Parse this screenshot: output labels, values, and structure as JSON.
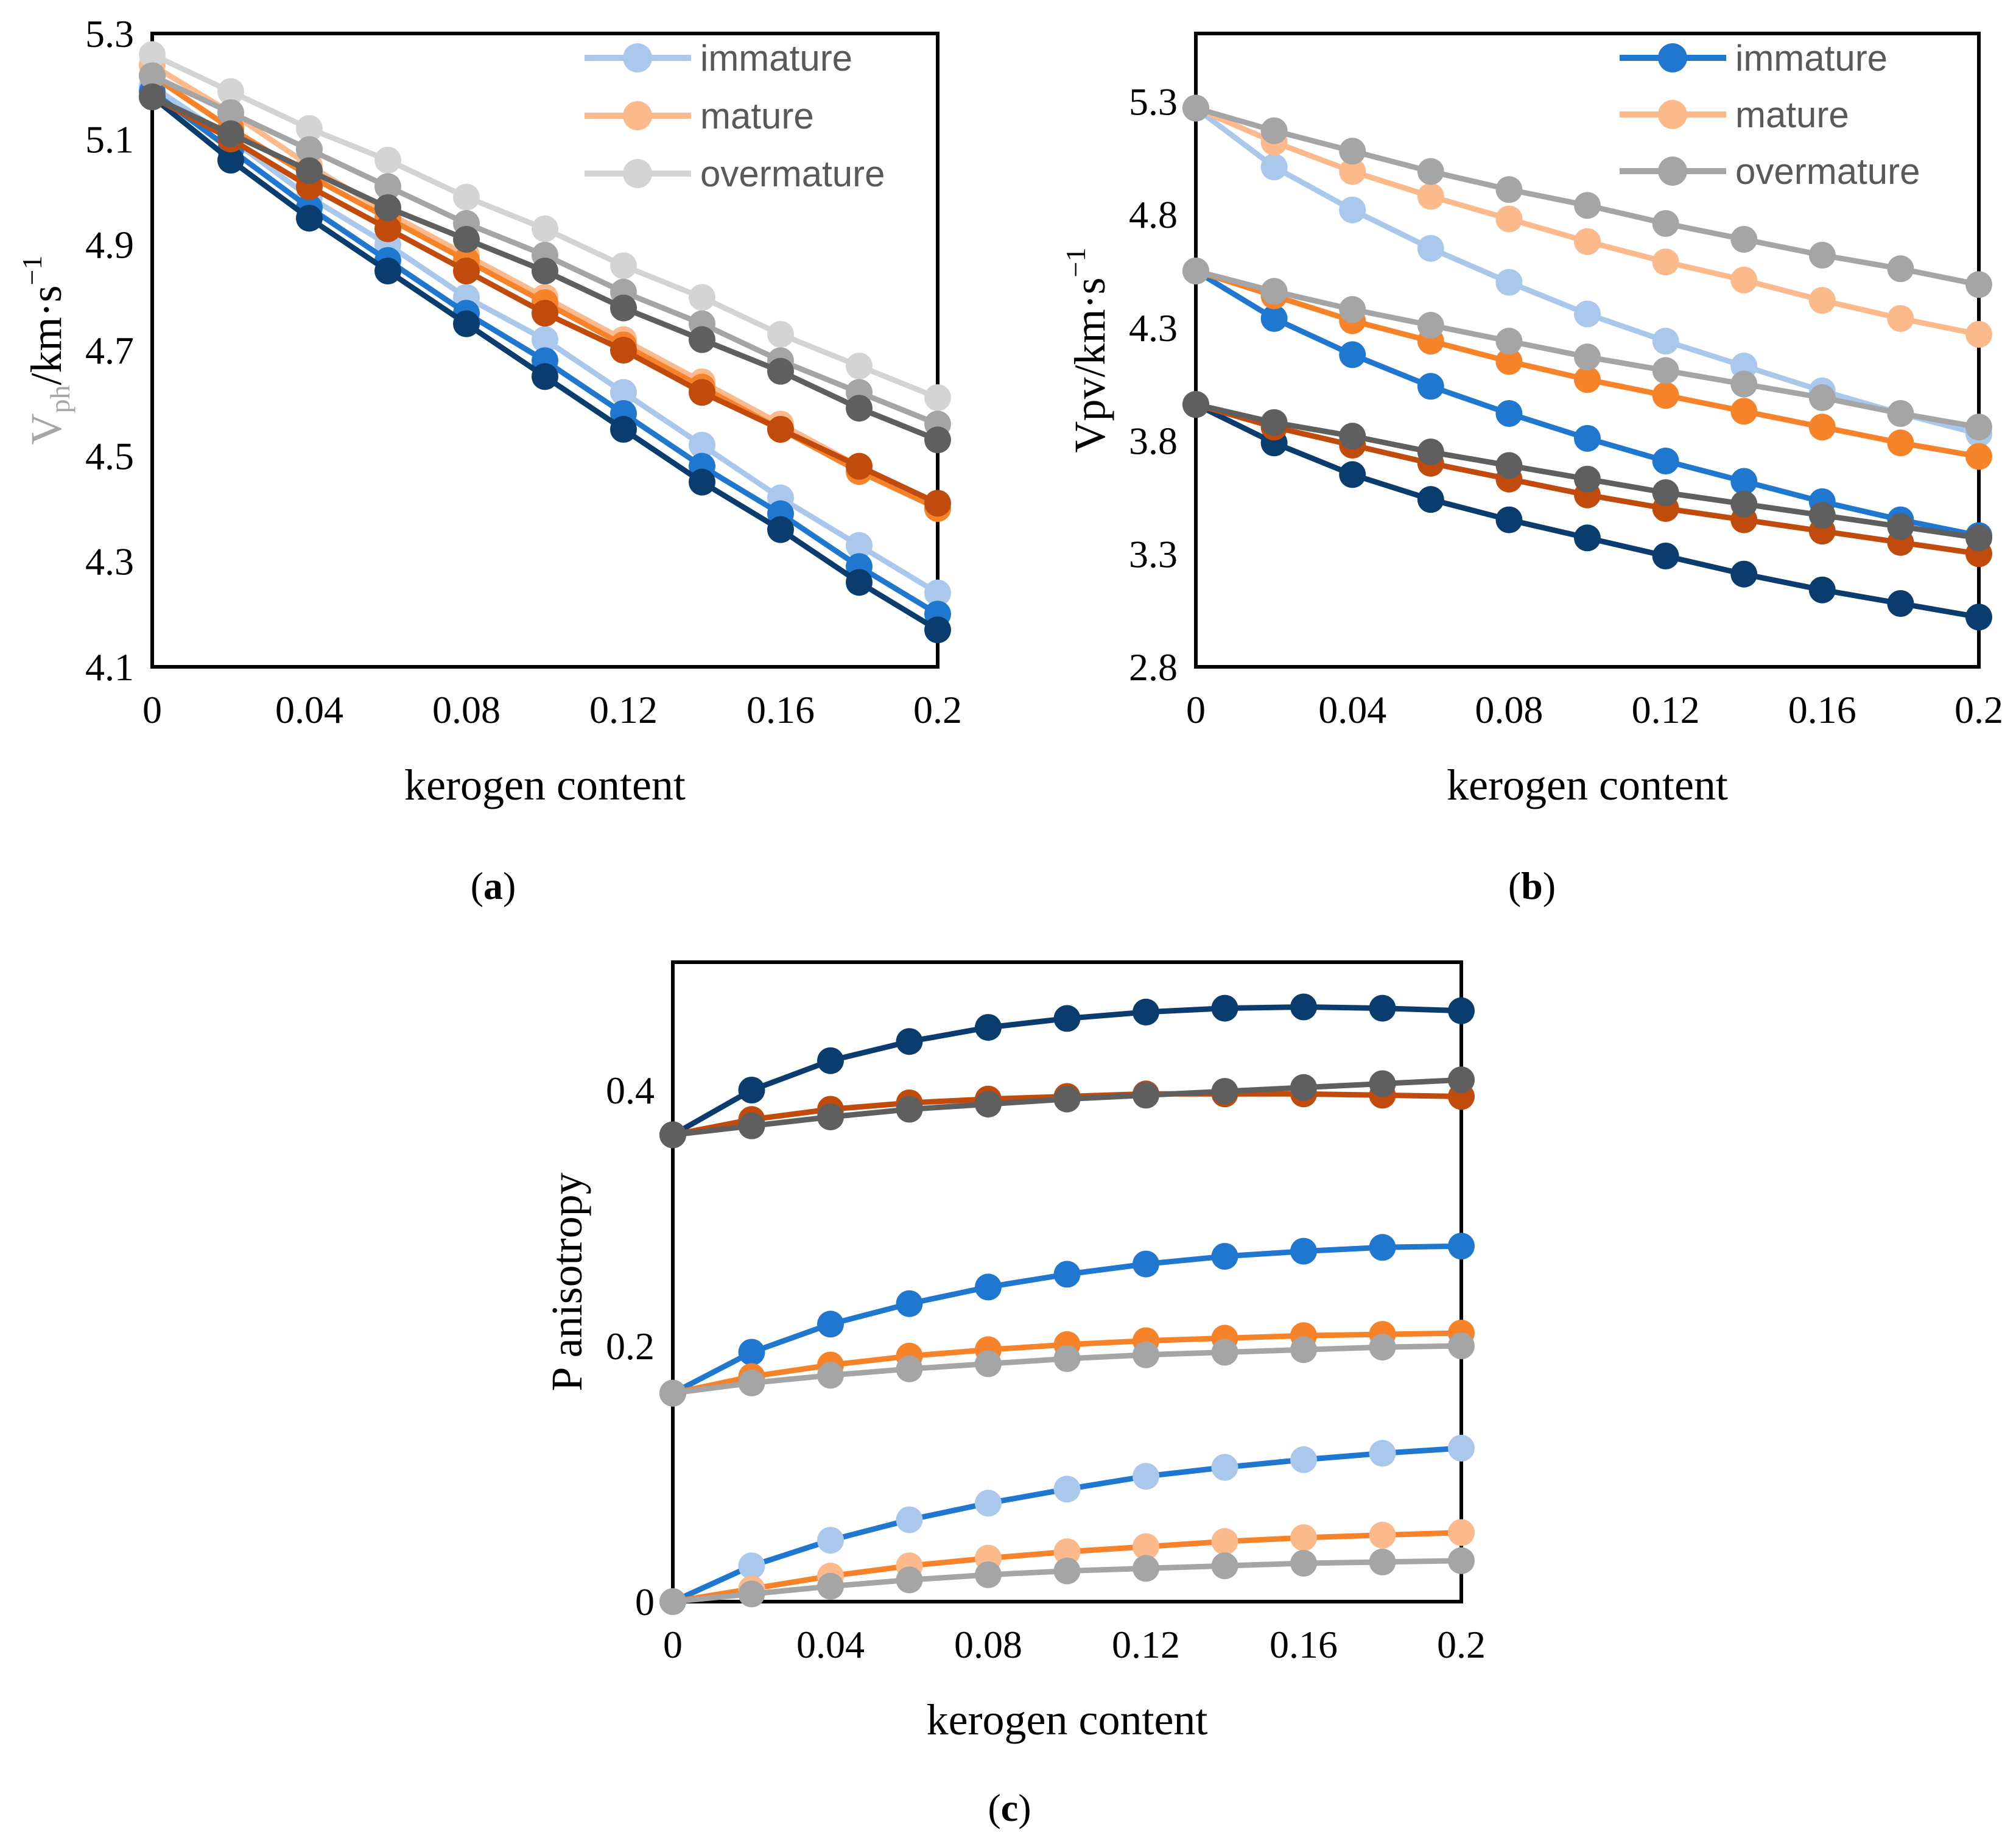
{
  "colors": {
    "immature_light": "#a9c8ec",
    "immature_mid": "#1f77cf",
    "immature_dark": "#0a3d6e",
    "mature_light": "#fbb98c",
    "mature_mid": "#f6822a",
    "mature_dark": "#c14b0c",
    "overmature_light": "#d4d4d4",
    "overmature_mid": "#a5a5a5",
    "overmature_dark": "#5f5f5f"
  },
  "chart_data": [
    {
      "id": "a",
      "type": "line",
      "panel_label": "a",
      "xlabel": "kerogen content",
      "ylabel": "V",
      "ylabel_sub": "ph",
      "ylabel_unit": "/km·s",
      "ylabel_sup": "−1",
      "xlim": [
        0,
        0.2
      ],
      "ylim": [
        4.1,
        5.3
      ],
      "xticks": [
        "0",
        "0.04",
        "0.08",
        "0.12",
        "0.16",
        "0.2"
      ],
      "yticks": [
        "4.1",
        "4.3",
        "4.5",
        "4.7",
        "4.9",
        "5.1",
        "5.3"
      ],
      "legend": [
        {
          "label": "immature",
          "color": "immature_light"
        },
        {
          "label": "mature",
          "color": "mature_light"
        },
        {
          "label": "overmature",
          "color": "overmature_light"
        }
      ],
      "x": [
        0,
        0.02,
        0.04,
        0.06,
        0.08,
        0.1,
        0.12,
        0.14,
        0.16,
        0.18,
        0.2
      ],
      "series": [
        {
          "name": "immature-1",
          "color": "immature_light",
          "values": [
            5.2,
            5.1,
            4.99,
            4.9,
            4.8,
            4.72,
            4.62,
            4.52,
            4.42,
            4.33,
            4.24
          ]
        },
        {
          "name": "immature-2",
          "color": "immature_mid",
          "values": [
            5.19,
            5.08,
            4.97,
            4.87,
            4.77,
            4.68,
            4.58,
            4.48,
            4.39,
            4.29,
            4.2
          ]
        },
        {
          "name": "immature-3",
          "color": "immature_dark",
          "values": [
            5.18,
            5.06,
            4.95,
            4.85,
            4.75,
            4.65,
            4.55,
            4.45,
            4.36,
            4.26,
            4.17
          ]
        },
        {
          "name": "mature-1",
          "color": "mature_light",
          "values": [
            5.24,
            5.15,
            5.05,
            4.96,
            4.88,
            4.8,
            4.72,
            4.64,
            4.56,
            4.48,
            4.4
          ]
        },
        {
          "name": "mature-2",
          "color": "mature_mid",
          "values": [
            5.22,
            5.12,
            5.03,
            4.95,
            4.87,
            4.79,
            4.71,
            4.63,
            4.55,
            4.47,
            4.4
          ]
        },
        {
          "name": "mature-3",
          "color": "mature_dark",
          "values": [
            5.18,
            5.1,
            5.01,
            4.93,
            4.85,
            4.77,
            4.7,
            4.62,
            4.55,
            4.48,
            4.41
          ]
        },
        {
          "name": "overmature-1",
          "color": "overmature_light",
          "values": [
            5.26,
            5.19,
            5.12,
            5.06,
            4.99,
            4.93,
            4.86,
            4.8,
            4.73,
            4.67,
            4.61
          ]
        },
        {
          "name": "overmature-2",
          "color": "overmature_mid",
          "values": [
            5.22,
            5.15,
            5.08,
            5.01,
            4.94,
            4.88,
            4.81,
            4.75,
            4.68,
            4.62,
            4.56
          ]
        },
        {
          "name": "overmature-3",
          "color": "overmature_dark",
          "values": [
            5.18,
            5.11,
            5.04,
            4.97,
            4.91,
            4.85,
            4.78,
            4.72,
            4.66,
            4.59,
            4.53
          ]
        }
      ]
    },
    {
      "id": "b",
      "type": "line",
      "panel_label": "b",
      "xlabel": "kerogen content",
      "ylabel": "Vpv/km·s",
      "ylabel_sup": "−1",
      "xlim": [
        0,
        0.2
      ],
      "ylim": [
        2.8,
        5.6
      ],
      "xticks": [
        "0",
        "0.04",
        "0.08",
        "0.12",
        "0.16",
        "0.2"
      ],
      "yticks": [
        "2.8",
        "3.3",
        "3.8",
        "4.3",
        "4.8",
        "5.3"
      ],
      "ytick_values": [
        2.8,
        3.3,
        3.8,
        4.3,
        4.8,
        5.3
      ],
      "legend": [
        {
          "label": "immature",
          "color": "immature_mid"
        },
        {
          "label": "mature",
          "color": "mature_light"
        },
        {
          "label": "overmature",
          "color": "overmature_mid"
        }
      ],
      "x": [
        0,
        0.02,
        0.04,
        0.06,
        0.08,
        0.1,
        0.12,
        0.14,
        0.16,
        0.18,
        0.2
      ],
      "series": [
        {
          "name": "immature-1",
          "color": "immature_light",
          "values": [
            5.27,
            5.01,
            4.82,
            4.65,
            4.5,
            4.36,
            4.24,
            4.13,
            4.02,
            3.92,
            3.83
          ]
        },
        {
          "name": "immature-2",
          "color": "immature_mid",
          "values": [
            4.55,
            4.34,
            4.18,
            4.04,
            3.92,
            3.81,
            3.71,
            3.62,
            3.53,
            3.45,
            3.38
          ]
        },
        {
          "name": "immature-3",
          "color": "immature_dark",
          "values": [
            3.96,
            3.79,
            3.65,
            3.54,
            3.45,
            3.37,
            3.29,
            3.21,
            3.14,
            3.08,
            3.02
          ]
        },
        {
          "name": "mature-1",
          "color": "mature_light",
          "values": [
            5.27,
            5.12,
            4.99,
            4.88,
            4.78,
            4.68,
            4.59,
            4.51,
            4.42,
            4.34,
            4.27
          ]
        },
        {
          "name": "mature-2",
          "color": "mature_mid",
          "values": [
            4.55,
            4.44,
            4.33,
            4.24,
            4.15,
            4.07,
            4.0,
            3.93,
            3.86,
            3.79,
            3.73
          ]
        },
        {
          "name": "mature-3",
          "color": "mature_dark",
          "values": [
            3.96,
            3.86,
            3.78,
            3.7,
            3.63,
            3.56,
            3.5,
            3.45,
            3.4,
            3.35,
            3.3
          ]
        },
        {
          "name": "overmature-1",
          "color": "overmature_mid",
          "values": [
            5.27,
            5.17,
            5.08,
            4.99,
            4.91,
            4.84,
            4.76,
            4.69,
            4.62,
            4.56,
            4.49
          ]
        },
        {
          "name": "overmature-2",
          "color": "overmature_mid",
          "values": [
            4.55,
            4.46,
            4.38,
            4.31,
            4.24,
            4.17,
            4.11,
            4.05,
            3.99,
            3.92,
            3.86
          ]
        },
        {
          "name": "overmature-3",
          "color": "overmature_dark",
          "values": [
            3.96,
            3.88,
            3.82,
            3.75,
            3.69,
            3.63,
            3.57,
            3.52,
            3.47,
            3.42,
            3.37
          ]
        }
      ]
    },
    {
      "id": "c",
      "type": "line",
      "panel_label": "c",
      "xlabel": "kerogen content",
      "ylabel": "P anisotropy",
      "xlim": [
        0,
        0.2
      ],
      "ylim": [
        0,
        0.5
      ],
      "xticks": [
        "0",
        "0.04",
        "0.08",
        "0.12",
        "0.16",
        "0.2"
      ],
      "yticks": [
        "0",
        "0.2",
        "0.4"
      ],
      "ytick_values": [
        0,
        0.2,
        0.4
      ],
      "x": [
        0,
        0.02,
        0.04,
        0.06,
        0.08,
        0.1,
        0.12,
        0.14,
        0.16,
        0.18,
        0.2
      ],
      "series": [
        {
          "name": "immature-3",
          "color": "immature_dark",
          "line": "immature_dark",
          "values": [
            0.365,
            0.4,
            0.423,
            0.438,
            0.449,
            0.456,
            0.461,
            0.464,
            0.465,
            0.464,
            0.462
          ]
        },
        {
          "name": "mature-3",
          "color": "mature_dark",
          "line": "mature_dark",
          "values": [
            0.365,
            0.377,
            0.385,
            0.39,
            0.393,
            0.395,
            0.397,
            0.397,
            0.397,
            0.396,
            0.395
          ]
        },
        {
          "name": "overmature-3",
          "color": "overmature_dark",
          "line": "overmature_dark",
          "values": [
            0.365,
            0.372,
            0.379,
            0.385,
            0.389,
            0.393,
            0.396,
            0.399,
            0.402,
            0.405,
            0.408
          ]
        },
        {
          "name": "immature-2",
          "color": "immature_mid",
          "line": "immature_mid",
          "values": [
            0.163,
            0.195,
            0.217,
            0.233,
            0.246,
            0.256,
            0.264,
            0.27,
            0.274,
            0.277,
            0.278
          ]
        },
        {
          "name": "mature-2",
          "color": "mature_mid",
          "line": "mature_mid",
          "values": [
            0.163,
            0.176,
            0.185,
            0.192,
            0.197,
            0.201,
            0.204,
            0.206,
            0.208,
            0.209,
            0.21
          ]
        },
        {
          "name": "overmature-2",
          "color": "overmature_mid",
          "line": "overmature_mid",
          "values": [
            0.163,
            0.171,
            0.177,
            0.182,
            0.186,
            0.19,
            0.193,
            0.195,
            0.197,
            0.199,
            0.2
          ]
        },
        {
          "name": "immature-1",
          "color": "immature_light",
          "line": "immature_mid",
          "values": [
            0,
            0.028,
            0.048,
            0.064,
            0.077,
            0.088,
            0.098,
            0.105,
            0.111,
            0.116,
            0.12
          ]
        },
        {
          "name": "mature-1",
          "color": "mature_light",
          "line": "mature_mid",
          "values": [
            0,
            0.01,
            0.02,
            0.028,
            0.034,
            0.039,
            0.043,
            0.047,
            0.05,
            0.052,
            0.054
          ]
        },
        {
          "name": "overmature-1",
          "color": "overmature_mid",
          "line": "overmature_mid",
          "values": [
            0,
            0.006,
            0.012,
            0.017,
            0.021,
            0.024,
            0.026,
            0.028,
            0.03,
            0.031,
            0.032
          ]
        }
      ]
    }
  ]
}
